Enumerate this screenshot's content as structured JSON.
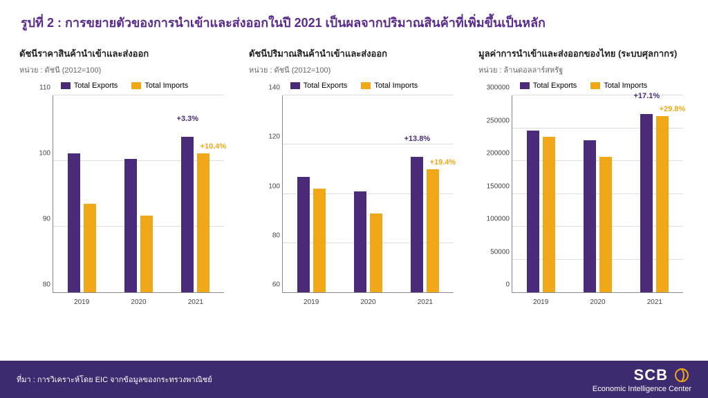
{
  "colors": {
    "title": "#5a2b8c",
    "exports": "#4a2b7a",
    "imports": "#f0a818",
    "footer_bg": "#3e2a6e",
    "grid": "#dddddd",
    "axis": "#888888",
    "bg": "#ffffff"
  },
  "title": "รูปที่ 2 : การขยายตัวของการนำเข้าและส่งออกในปี 2021 เป็นผลจากปริมาณสินค้าที่เพิ่มขึ้นเป็นหลัก",
  "legend": {
    "exports": "Total Exports",
    "imports": "Total Imports"
  },
  "charts": [
    {
      "title": "ดัชนีราคาสินค้านำเข้าและส่งออก",
      "unit": "หน่วย : ดัชนี (2012=100)",
      "type": "bar",
      "categories": [
        "2019",
        "2020",
        "2021"
      ],
      "exports": [
        101.2,
        100.3,
        103.7
      ],
      "imports": [
        93.5,
        91.7,
        101.2
      ],
      "ylim": [
        80,
        110
      ],
      "ytick_step": 10,
      "bar_width": 0.22,
      "pct_labels": {
        "exports": "+3.3%",
        "imports": "+10.4%"
      }
    },
    {
      "title": "ดัชนีปริมาณสินค้านำเข้าและส่งออก",
      "unit": "หน่วย : ดัชนี (2012=100)",
      "type": "bar",
      "categories": [
        "2019",
        "2020",
        "2021"
      ],
      "exports": [
        107,
        101,
        115
      ],
      "imports": [
        102,
        92,
        110
      ],
      "ylim": [
        60,
        140
      ],
      "ytick_step": 20,
      "bar_width": 0.22,
      "pct_labels": {
        "exports": "+13.8%",
        "imports": "+19.4%"
      }
    },
    {
      "title": "มูลค่าการนำเข้าและส่งออกของไทย (ระบบศุลกากร)",
      "unit": "หน่วย : ล้านดอลลาร์สหรัฐ",
      "type": "bar",
      "categories": [
        "2019",
        "2020",
        "2021"
      ],
      "exports": [
        246000,
        232000,
        272000
      ],
      "imports": [
        237000,
        206000,
        268000
      ],
      "ylim": [
        0,
        300000
      ],
      "ytick_step": 50000,
      "bar_width": 0.22,
      "pct_labels": {
        "exports": "+17.1%",
        "imports": "+29.8%"
      }
    }
  ],
  "footer": {
    "source": "ที่มา : การวิเคราะห์โดย EIC จากข้อมูลของกระทรวงพาณิชย์",
    "logo_main": "SCB",
    "logo_sub": "Economic Intelligence Center"
  }
}
